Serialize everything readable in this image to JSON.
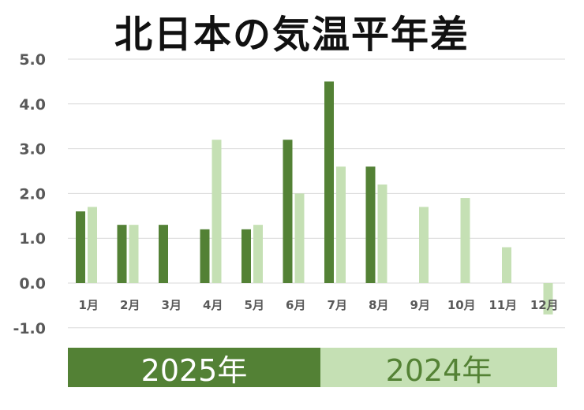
{
  "chart_data": {
    "type": "bar",
    "title": "北日本の気温平年差",
    "categories": [
      "1月",
      "2月",
      "3月",
      "4月",
      "5月",
      "6月",
      "7月",
      "8月",
      "9月",
      "10月",
      "11月",
      "12月"
    ],
    "series": [
      {
        "name": "2025年",
        "color": "#538135",
        "values": [
          1.6,
          1.3,
          1.3,
          1.2,
          1.2,
          3.2,
          4.5,
          2.6,
          null,
          null,
          null,
          null
        ]
      },
      {
        "name": "2024年",
        "color": "#c5e0b4",
        "values": [
          1.7,
          1.3,
          null,
          3.2,
          1.3,
          2.0,
          2.6,
          2.2,
          1.7,
          1.9,
          0.8,
          -0.7
        ]
      }
    ],
    "yticks": [
      "5.0",
      "4.0",
      "3.0",
      "2.0",
      "1.0",
      "0.0",
      "-1.0"
    ],
    "ylim": [
      -1.0,
      5.0
    ],
    "grid": true,
    "legend_placement": "bottom"
  }
}
